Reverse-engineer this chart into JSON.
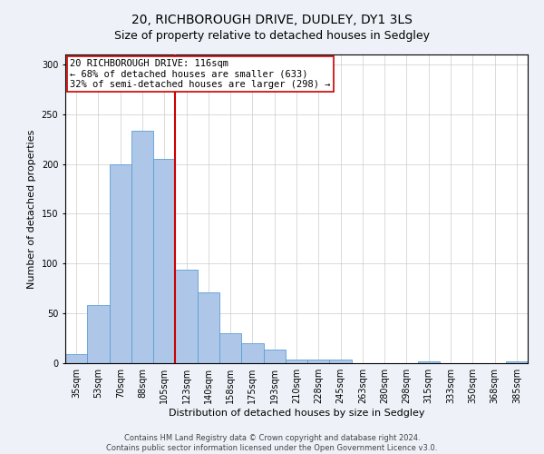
{
  "title": "20, RICHBOROUGH DRIVE, DUDLEY, DY1 3LS",
  "subtitle": "Size of property relative to detached houses in Sedgley",
  "xlabel": "Distribution of detached houses by size in Sedgley",
  "ylabel": "Number of detached properties",
  "categories": [
    "35sqm",
    "53sqm",
    "70sqm",
    "88sqm",
    "105sqm",
    "123sqm",
    "140sqm",
    "158sqm",
    "175sqm",
    "193sqm",
    "210sqm",
    "228sqm",
    "245sqm",
    "263sqm",
    "280sqm",
    "298sqm",
    "315sqm",
    "333sqm",
    "350sqm",
    "368sqm",
    "385sqm"
  ],
  "values": [
    9,
    58,
    200,
    233,
    205,
    94,
    71,
    30,
    20,
    14,
    4,
    4,
    4,
    0,
    0,
    0,
    2,
    0,
    0,
    0,
    2
  ],
  "bar_color": "#aec6e8",
  "bar_edge_color": "#5a9fd4",
  "vline_x": 4.5,
  "vline_color": "#cc0000",
  "ylim": [
    0,
    310
  ],
  "yticks": [
    0,
    50,
    100,
    150,
    200,
    250,
    300
  ],
  "annotation_text": "20 RICHBOROUGH DRIVE: 116sqm\n← 68% of detached houses are smaller (633)\n32% of semi-detached houses are larger (298) →",
  "annotation_box_color": "#ffffff",
  "annotation_box_edge": "#cc0000",
  "footer_line1": "Contains HM Land Registry data © Crown copyright and database right 2024.",
  "footer_line2": "Contains public sector information licensed under the Open Government Licence v3.0.",
  "bg_color": "#eef2f8",
  "plot_bg_color": "#ffffff",
  "title_fontsize": 10,
  "axis_label_fontsize": 8,
  "tick_fontsize": 7,
  "annotation_fontsize": 7.5,
  "footer_fontsize": 6
}
